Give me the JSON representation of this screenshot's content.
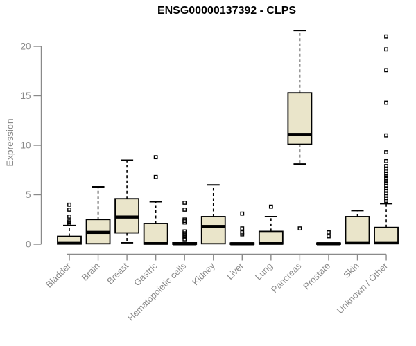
{
  "page": {
    "background": "#ffffff"
  },
  "chart_data": {
    "type": "boxplot",
    "title": "ENSG00000137392 - CLPS",
    "ylabel": "Expression",
    "xlabel": "",
    "ylim": [
      0,
      22
    ],
    "yticks": [
      0,
      5,
      10,
      15,
      20
    ],
    "grid": false,
    "legend": "none",
    "colors": {
      "box_fill": "#EAE5CA",
      "box_stroke": "#000000",
      "median": "#000000",
      "outlier": "#000000",
      "axis": "#8a8a8a",
      "tick_text": "#8a8a8a",
      "title_text": "#000000"
    },
    "categories": [
      "Bladder",
      "Brain",
      "Breast",
      "Gastric",
      "Hematopoietic cells",
      "Kidney",
      "Liver",
      "Lung",
      "Pancreas",
      "Prostate",
      "Skin",
      "Unknown / Other"
    ],
    "series": [
      {
        "name": "Bladder",
        "whisker_low": 0,
        "q1": 0.02,
        "median": 0.15,
        "q3": 0.8,
        "whisker_high": 1.9,
        "outliers": [
          2.1,
          2.3,
          2.8,
          3.5,
          4.0
        ]
      },
      {
        "name": "Brain",
        "whisker_low": 0.02,
        "q1": 0.05,
        "median": 1.2,
        "q3": 2.5,
        "whisker_high": 5.8,
        "outliers": []
      },
      {
        "name": "Breast",
        "whisker_low": 0.15,
        "q1": 1.15,
        "median": 2.75,
        "q3": 4.6,
        "whisker_high": 8.5,
        "outliers": []
      },
      {
        "name": "Gastric",
        "whisker_low": 0,
        "q1": 0.02,
        "median": 0.1,
        "q3": 2.1,
        "whisker_high": 4.3,
        "outliers": [
          6.8,
          8.8
        ]
      },
      {
        "name": "Hematopoietic cells",
        "whisker_low": 0,
        "q1": 0,
        "median": 0.05,
        "q3": 0.15,
        "whisker_high": 0.3,
        "outliers": [
          0.5,
          0.7,
          0.9,
          1.1,
          1.3,
          2.2,
          2.35,
          2.5,
          3.5,
          4.2
        ]
      },
      {
        "name": "Kidney",
        "whisker_low": 0.02,
        "q1": 0.05,
        "median": 1.8,
        "q3": 2.8,
        "whisker_high": 6.0,
        "outliers": []
      },
      {
        "name": "Liver",
        "whisker_low": 0,
        "q1": 0,
        "median": 0.05,
        "q3": 0.12,
        "whisker_high": 0.25,
        "outliers": [
          1.0,
          1.2,
          1.6,
          3.1
        ]
      },
      {
        "name": "Lung",
        "whisker_low": 0,
        "q1": 0.02,
        "median": 0.1,
        "q3": 1.3,
        "whisker_high": 2.8,
        "outliers": [
          3.8
        ]
      },
      {
        "name": "Pancreas",
        "whisker_low": 8.1,
        "q1": 10.1,
        "median": 11.1,
        "q3": 15.3,
        "whisker_high": 21.6,
        "outliers": [
          1.6
        ]
      },
      {
        "name": "Prostate",
        "whisker_low": 0,
        "q1": 0,
        "median": 0.05,
        "q3": 0.12,
        "whisker_high": 0.2,
        "outliers": [
          0.8,
          1.2
        ]
      },
      {
        "name": "Skin",
        "whisker_low": 0.02,
        "q1": 0.05,
        "median": 0.15,
        "q3": 2.8,
        "whisker_high": 3.4,
        "outliers": []
      },
      {
        "name": "Unknown / Other",
        "whisker_low": 0.02,
        "q1": 0.05,
        "median": 0.15,
        "q3": 1.7,
        "whisker_high": 4.1,
        "outliers": [
          4.4,
          4.65,
          4.9,
          5.15,
          5.4,
          5.65,
          5.9,
          6.15,
          6.4,
          6.65,
          6.9,
          7.15,
          7.4,
          7.65,
          7.9,
          8.4,
          9.3,
          11.0,
          14.3,
          17.6,
          19.7,
          21.0
        ]
      }
    ]
  }
}
